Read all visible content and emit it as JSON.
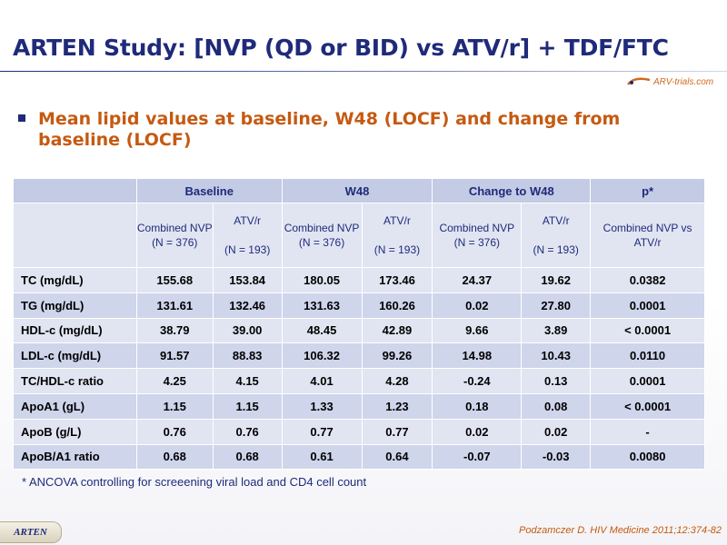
{
  "title": "ARTEN Study: [NVP (QD or BID) vs ATV/r] + TDF/FTC",
  "logo_text": "ARV-trials.com",
  "bullet": "Mean lipid values at baseline, W48 (LOCF) and change from baseline (LOCF)",
  "table": {
    "groups": [
      "Baseline",
      "W48",
      "Change to W48",
      "p*"
    ],
    "subheaders": [
      "Combined NVP (N = 376)",
      "ATV/r\n\n(N = 193)",
      "Combined NVP (N = 376)",
      "ATV/r\n\n(N = 193)",
      "Combined NVP (N = 376)",
      "ATV/r\n\n(N = 193)",
      "Combined NVP vs ATV/r"
    ],
    "rows": [
      {
        "label": "TC (mg/dL)",
        "cells": [
          "155.68",
          "153.84",
          "180.05",
          "173.46",
          "24.37",
          "19.62",
          "0.0382"
        ]
      },
      {
        "label": "TG (mg/dL)",
        "cells": [
          "131.61",
          "132.46",
          "131.63",
          "160.26",
          "0.02",
          "27.80",
          "0.0001"
        ]
      },
      {
        "label": "HDL-c (mg/dL)",
        "cells": [
          "38.79",
          "39.00",
          "48.45",
          "42.89",
          "9.66",
          "3.89",
          "< 0.0001"
        ]
      },
      {
        "label": "LDL-c (mg/dL)",
        "cells": [
          "91.57",
          "88.83",
          "106.32",
          "99.26",
          "14.98",
          "10.43",
          "0.0110"
        ]
      },
      {
        "label": "TC/HDL-c ratio",
        "cells": [
          "4.25",
          "4.15",
          "4.01",
          "4.28",
          "-0.24",
          "0.13",
          "0.0001"
        ]
      },
      {
        "label": "ApoA1 (gL)",
        "cells": [
          "1.15",
          "1.15",
          "1.33",
          "1.23",
          "0.18",
          "0.08",
          "< 0.0001"
        ]
      },
      {
        "label": "ApoB (g/L)",
        "cells": [
          "0.76",
          "0.76",
          "0.77",
          "0.77",
          "0.02",
          "0.02",
          "-"
        ]
      },
      {
        "label": "ApoB/A1 ratio",
        "cells": [
          "0.68",
          "0.68",
          "0.61",
          "0.64",
          "-0.07",
          "-0.03",
          "0.0080"
        ]
      }
    ]
  },
  "footnote": "* ANCOVA controlling for screeening viral load and CD4 cell count",
  "badge": "ARTEN",
  "citation": "Podzamczer D. HIV Medicine 2011;12:374-82",
  "colors": {
    "title": "#1f2a7a",
    "accent": "#c55a11",
    "header_fill": "#c3cbe5",
    "cell_fill": "#e1e5f2"
  }
}
